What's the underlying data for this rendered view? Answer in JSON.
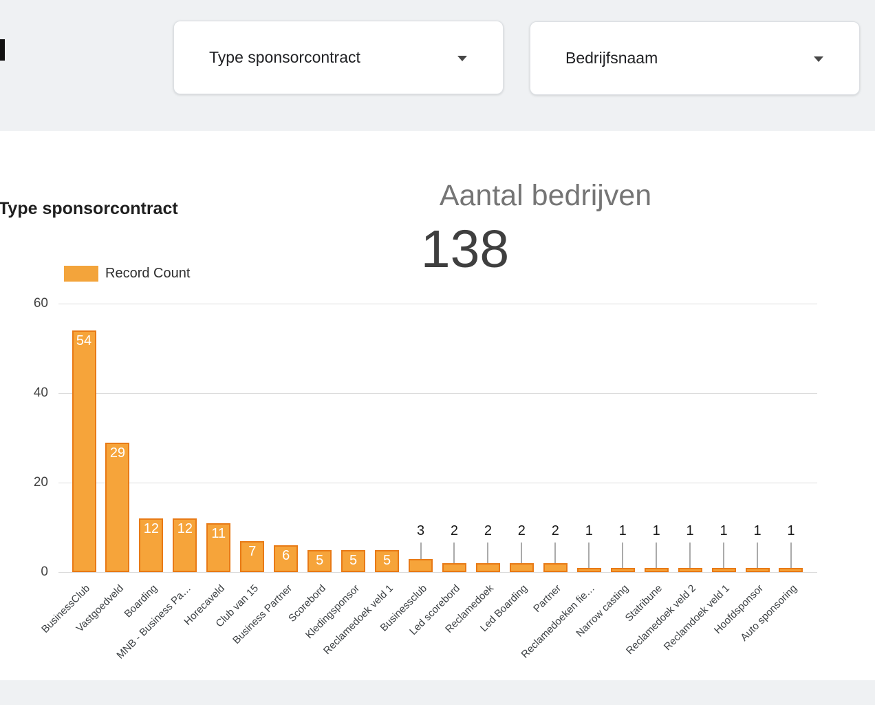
{
  "header": {
    "filters": [
      {
        "label": "Type sponsorcontract"
      },
      {
        "label": "Bedrijfsnaam"
      }
    ]
  },
  "scorecard": {
    "title": "Aantal bedrijven",
    "value": "138"
  },
  "bar_chart": {
    "title": "Type sponsorcontract",
    "legend_label": "Record Count"
  },
  "chart_data": {
    "type": "bar",
    "title": "Type sponsorcontract",
    "legend": [
      "Record Count"
    ],
    "legend_position": "top-left",
    "grid": true,
    "ylim": [
      0,
      60
    ],
    "yticks": [
      0,
      20,
      40,
      60
    ],
    "bar_color": "#F6A43A",
    "bar_border_color": "#E87A16",
    "categories": [
      "BusinessClub",
      "Vastgoedveld",
      "Boarding",
      "MNB - Business Pa…",
      "Horecaveld",
      "Club van 15",
      "Business Partner",
      "Scorebord",
      "Kledingsponsor",
      "Reclamedoek veld 1",
      "Businessclub",
      "Led scorebord",
      "Reclamedoek",
      "Led Boarding",
      "Partner",
      "Reclamedoeken fie…",
      "Narrow casting",
      "Statribune",
      "Reclamedoek veld 2",
      "Reclamdoek veld 1",
      "Hoofdsponsor",
      "Auto sponsoring"
    ],
    "values": [
      54,
      29,
      12,
      12,
      11,
      7,
      6,
      5,
      5,
      5,
      3,
      2,
      2,
      2,
      2,
      1,
      1,
      1,
      1,
      1,
      1,
      1
    ]
  }
}
